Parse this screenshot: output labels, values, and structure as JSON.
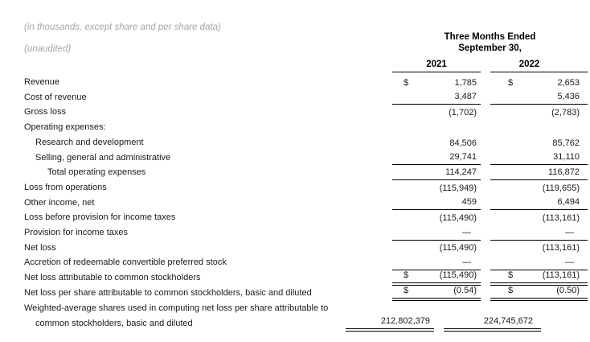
{
  "meta": {
    "note": "(in thousands, except share and per share data)",
    "unaudited": "(unaudited)"
  },
  "header": {
    "period_line1": "Three Months Ended",
    "period_line2": "September 30,",
    "years": [
      "2021",
      "2022"
    ]
  },
  "rows": [
    {
      "label": "Revenue",
      "indent": 0,
      "cur1": "$",
      "val1": "1,785",
      "cur2": "$",
      "val2": "2,653",
      "rule": "none"
    },
    {
      "label": "Cost of revenue",
      "indent": 0,
      "cur1": "",
      "val1": "3,487",
      "cur2": "",
      "val2": "5,436",
      "rule": "single"
    },
    {
      "label": "Gross loss",
      "indent": 0,
      "cur1": "",
      "val1": "(1,702)",
      "cur2": "",
      "val2": "(2,783)",
      "rule": "none"
    },
    {
      "label": "Operating expenses:",
      "indent": 0,
      "cur1": "",
      "val1": "",
      "cur2": "",
      "val2": "",
      "rule": "none"
    },
    {
      "label": "Research and development",
      "indent": 1,
      "cur1": "",
      "val1": "84,506",
      "cur2": "",
      "val2": "85,762",
      "rule": "none"
    },
    {
      "label": "Selling, general and administrative",
      "indent": 1,
      "cur1": "",
      "val1": "29,741",
      "cur2": "",
      "val2": "31,110",
      "rule": "single"
    },
    {
      "label": "Total operating expenses",
      "indent": 2,
      "cur1": "",
      "val1": "114,247",
      "cur2": "",
      "val2": "116,872",
      "rule": "single"
    },
    {
      "label": "Loss from operations",
      "indent": 0,
      "cur1": "",
      "val1": "(115,949)",
      "cur2": "",
      "val2": "(119,655)",
      "rule": "none"
    },
    {
      "label": "Other income, net",
      "indent": 0,
      "cur1": "",
      "val1": "459",
      "cur2": "",
      "val2": "6,494",
      "rule": "single"
    },
    {
      "label": "Loss before provision for income taxes",
      "indent": 0,
      "cur1": "",
      "val1": "(115,490)",
      "cur2": "",
      "val2": "(113,161)",
      "rule": "none"
    },
    {
      "label": "Provision for income taxes",
      "indent": 0,
      "cur1": "",
      "val1": "—",
      "cur2": "",
      "val2": "—",
      "rule": "single"
    },
    {
      "label": "Net loss",
      "indent": 0,
      "cur1": "",
      "val1": "(115,490)",
      "cur2": "",
      "val2": "(113,161)",
      "rule": "none"
    },
    {
      "label": "Accretion of redeemable convertible preferred stock",
      "indent": 0,
      "cur1": "",
      "val1": "—",
      "cur2": "",
      "val2": "—",
      "rule": "single"
    },
    {
      "label": "Net loss attributable to common stockholders",
      "indent": 0,
      "cur1": "$",
      "val1": "(115,490)",
      "cur2": "$",
      "val2": "(113,161)",
      "rule": "double"
    },
    {
      "label": "Net loss per share attributable to common stockholders, basic and diluted",
      "indent": 0,
      "cur1": "$",
      "val1": "(0.54)",
      "cur2": "$",
      "val2": "(0.50)",
      "rule": "double"
    },
    {
      "label": "Weighted-average shares used in computing net loss per share attributable to common stockholders, basic and diluted",
      "indent": 0,
      "hang": true,
      "cur1": "",
      "val1": "212,802,379",
      "cur2": "",
      "val2": "224,745,672",
      "rule": "double"
    }
  ],
  "colors": {
    "text": "#1a1a1a",
    "muted_note": "#a6a6a6",
    "rule": "#000000"
  }
}
